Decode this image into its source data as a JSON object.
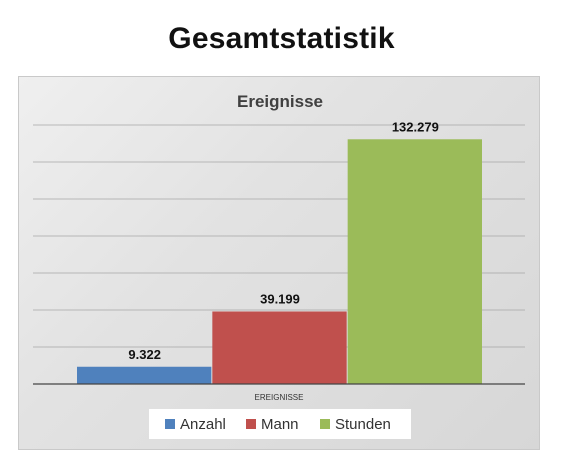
{
  "page": {
    "title": "Gesamtstatistik"
  },
  "chart_data": {
    "type": "bar",
    "title": "Ereignisse",
    "categories": [
      "EREIGNISSE"
    ],
    "series": [
      {
        "name": "Anzahl",
        "values": [
          9322
        ],
        "label": "9.322",
        "color": "#4f81bd"
      },
      {
        "name": "Mann",
        "values": [
          39199
        ],
        "label": "39.199",
        "color": "#c0504d"
      },
      {
        "name": "Stunden",
        "values": [
          132279
        ],
        "label": "132.279",
        "color": "#9bbb59"
      }
    ],
    "ylim": [
      0,
      140000
    ],
    "y_grid_step": 20000,
    "grid": true,
    "y_tick_labels_shown": false,
    "legend": "bottom"
  }
}
